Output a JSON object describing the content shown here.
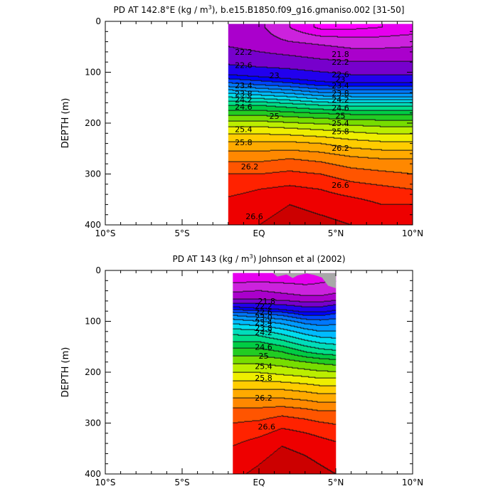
{
  "chart_data": [
    {
      "type": "contour",
      "title": "PD AT 142.8°E (kg / m³), b.e15.B1850.f09_g16.gmaniso.002 [31-50]",
      "title_parts": {
        "pre": "PD AT 142.8°E (kg / m",
        "sup": "3",
        "post": "), b.e15.B1850.f09_g16.gmaniso.002 [31-50]"
      },
      "ylabel": "DEPTH (m)",
      "xlabel": "",
      "xlim": [
        -10,
        10
      ],
      "ylim": [
        400,
        0
      ],
      "x_ticks": [
        {
          "value": -10,
          "label": "10°S"
        },
        {
          "value": -5,
          "label": "5°S"
        },
        {
          "value": 0,
          "label": "EQ"
        },
        {
          "value": 5,
          "label": "5°N"
        },
        {
          "value": 10,
          "label": "10°N"
        }
      ],
      "y_ticks": [
        {
          "value": 0,
          "label": "0"
        },
        {
          "value": 100,
          "label": "100"
        },
        {
          "value": 200,
          "label": "200"
        },
        {
          "value": 300,
          "label": "300"
        },
        {
          "value": 400,
          "label": "400"
        }
      ],
      "data_xlim": [
        -2,
        10
      ],
      "data_ylim": [
        5,
        400
      ],
      "levels": [
        21.0,
        21.4,
        21.8,
        22.2,
        22.6,
        23.0,
        23.2,
        23.4,
        23.6,
        23.8,
        24.0,
        24.2,
        24.4,
        24.6,
        24.8,
        25.0,
        25.2,
        25.4,
        25.6,
        25.8,
        26.0,
        26.2,
        26.4,
        26.6,
        26.8
      ],
      "colors": [
        "#ff00ff",
        "#e600ee",
        "#cc22dd",
        "#aa00cc",
        "#7700cc",
        "#2200ee",
        "#0000ff",
        "#0044ff",
        "#0077ff",
        "#0099ff",
        "#00bbff",
        "#00ddee",
        "#00ddbb",
        "#00dd88",
        "#00cc44",
        "#22cc22",
        "#77dd00",
        "#bbee00",
        "#eeee00",
        "#ffcc00",
        "#ffaa00",
        "#ff8800",
        "#ff5500",
        "#ff2200",
        "#ee0000",
        "#cc0000"
      ],
      "profile_x": [
        -2,
        0,
        2,
        4,
        6,
        8,
        10
      ],
      "profiles": [
        {
          "depth": 12,
          "values": [
            22.0,
            21.9,
            21.4,
            20.9,
            20.9,
            21.0,
            21.1
          ]
        },
        {
          "depth": 40,
          "values": [
            22.1,
            22.0,
            21.8,
            21.7,
            21.6,
            21.6,
            21.7
          ]
        },
        {
          "depth": 60,
          "values": [
            22.3,
            22.2,
            22.1,
            22.0,
            21.9,
            21.9,
            21.9
          ]
        },
        {
          "depth": 85,
          "values": [
            22.6,
            22.5,
            22.45,
            22.35,
            22.3,
            22.3,
            22.3
          ]
        },
        {
          "depth": 105,
          "values": [
            23.0,
            22.9,
            22.8,
            22.7,
            22.6,
            22.6,
            22.6
          ]
        },
        {
          "depth": 125,
          "values": [
            23.5,
            23.4,
            23.3,
            23.15,
            23.1,
            23.1,
            23.1
          ]
        },
        {
          "depth": 145,
          "values": [
            24.1,
            24.0,
            23.9,
            23.75,
            23.7,
            23.7,
            23.7
          ]
        },
        {
          "depth": 165,
          "values": [
            24.6,
            24.6,
            24.5,
            24.4,
            24.35,
            24.35,
            24.35
          ]
        },
        {
          "depth": 185,
          "values": [
            25.0,
            25.0,
            24.95,
            24.9,
            24.85,
            24.85,
            24.85
          ]
        },
        {
          "depth": 210,
          "values": [
            25.45,
            25.45,
            25.4,
            25.35,
            25.3,
            25.25,
            25.25
          ]
        },
        {
          "depth": 240,
          "values": [
            25.85,
            25.85,
            25.85,
            25.8,
            25.7,
            25.65,
            25.65
          ]
        },
        {
          "depth": 270,
          "values": [
            26.15,
            26.15,
            26.2,
            26.15,
            26.05,
            26.0,
            26.0
          ]
        },
        {
          "depth": 300,
          "values": [
            26.4,
            26.4,
            26.45,
            26.4,
            26.3,
            26.25,
            26.2
          ]
        },
        {
          "depth": 330,
          "values": [
            26.55,
            26.6,
            26.65,
            26.6,
            26.5,
            26.45,
            26.4
          ]
        },
        {
          "depth": 360,
          "values": [
            26.65,
            26.7,
            26.8,
            26.75,
            26.7,
            26.6,
            26.6
          ]
        },
        {
          "depth": 400,
          "values": [
            26.75,
            26.8,
            26.9,
            26.85,
            26.8,
            26.75,
            26.7
          ]
        }
      ],
      "contour_labels": [
        {
          "text": "22.2",
          "x": -1.0,
          "y": 60
        },
        {
          "text": "22.6",
          "x": -1.0,
          "y": 86
        },
        {
          "text": "23",
          "x": 1.0,
          "y": 106
        },
        {
          "text": "23.4",
          "x": -1.0,
          "y": 126
        },
        {
          "text": "23.8",
          "x": -1.0,
          "y": 142
        },
        {
          "text": "24.2",
          "x": -1.0,
          "y": 154
        },
        {
          "text": "24.6",
          "x": -1.0,
          "y": 168
        },
        {
          "text": "25",
          "x": 1.0,
          "y": 186
        },
        {
          "text": "25.4",
          "x": -1.0,
          "y": 212
        },
        {
          "text": "25.8",
          "x": -1.0,
          "y": 238
        },
        {
          "text": "26.2",
          "x": -0.6,
          "y": 285
        },
        {
          "text": "26.6",
          "x": -0.3,
          "y": 383
        },
        {
          "text": "21.8",
          "x": 5.3,
          "y": 64
        },
        {
          "text": "22.2",
          "x": 5.3,
          "y": 80
        },
        {
          "text": "22.6",
          "x": 5.3,
          "y": 104
        },
        {
          "text": "23",
          "x": 5.3,
          "y": 114
        },
        {
          "text": "23.4",
          "x": 5.3,
          "y": 126
        },
        {
          "text": "23.8",
          "x": 5.3,
          "y": 141
        },
        {
          "text": "24.2",
          "x": 5.3,
          "y": 154
        },
        {
          "text": "24.6",
          "x": 5.3,
          "y": 170
        },
        {
          "text": "25",
          "x": 5.3,
          "y": 185
        },
        {
          "text": "25.4",
          "x": 5.3,
          "y": 200
        },
        {
          "text": "25.8",
          "x": 5.3,
          "y": 216
        },
        {
          "text": "26.2",
          "x": 5.3,
          "y": 249
        },
        {
          "text": "26.6",
          "x": 5.3,
          "y": 322
        }
      ]
    },
    {
      "type": "contour",
      "title": "PD AT 143 (kg / m³) Johnson et al (2002)",
      "title_parts": {
        "pre": "PD AT 143 (kg / m",
        "sup": "3",
        "post": ") Johnson et al (2002)"
      },
      "ylabel": "DEPTH (m)",
      "xlabel": "",
      "xlim": [
        -10,
        10
      ],
      "ylim": [
        400,
        0
      ],
      "x_ticks": [
        {
          "value": -10,
          "label": "10°S"
        },
        {
          "value": -5,
          "label": "5°S"
        },
        {
          "value": 0,
          "label": "EQ"
        },
        {
          "value": 5,
          "label": "5°N"
        },
        {
          "value": 10,
          "label": "10°N"
        }
      ],
      "y_ticks": [
        {
          "value": 0,
          "label": "0"
        },
        {
          "value": 100,
          "label": "100"
        },
        {
          "value": 200,
          "label": "200"
        },
        {
          "value": 300,
          "label": "300"
        },
        {
          "value": 400,
          "label": "400"
        }
      ],
      "data_xlim": [
        -1.7,
        5
      ],
      "data_ylim": [
        5,
        400
      ],
      "missing_color": "#a8a8a8",
      "levels": [
        21.0,
        21.4,
        21.8,
        22.2,
        22.6,
        23.0,
        23.2,
        23.4,
        23.6,
        23.8,
        24.0,
        24.2,
        24.4,
        24.6,
        24.8,
        25.0,
        25.2,
        25.4,
        25.6,
        25.8,
        26.0,
        26.2,
        26.4,
        26.6,
        26.8
      ],
      "colors": [
        "#ff00ff",
        "#e600ee",
        "#cc22dd",
        "#aa00cc",
        "#7700cc",
        "#2200ee",
        "#0000ff",
        "#0044ff",
        "#0077ff",
        "#0099ff",
        "#00bbff",
        "#00ddee",
        "#00ddbb",
        "#00dd88",
        "#00cc44",
        "#22cc22",
        "#77dd00",
        "#bbee00",
        "#eeee00",
        "#ffcc00",
        "#ffaa00",
        "#ff8800",
        "#ff5500",
        "#ff2200",
        "#ee0000",
        "#cc0000"
      ],
      "profile_x": [
        -1.7,
        0,
        1.5,
        3,
        4,
        5
      ],
      "profiles": [
        {
          "depth": 15,
          "values": [
            21.2,
            21.2,
            21.2,
            21.2,
            21.3,
            21.3
          ]
        },
        {
          "depth": 35,
          "values": [
            21.6,
            21.7,
            21.6,
            21.5,
            21.5,
            21.6
          ]
        },
        {
          "depth": 55,
          "values": [
            22.1,
            22.1,
            22.0,
            21.9,
            21.9,
            22.0
          ]
        },
        {
          "depth": 72,
          "values": [
            23.0,
            22.9,
            22.8,
            22.6,
            22.6,
            22.8
          ]
        },
        {
          "depth": 85,
          "values": [
            23.5,
            23.4,
            23.3,
            23.1,
            23.1,
            23.2
          ]
        },
        {
          "depth": 100,
          "values": [
            23.9,
            23.8,
            23.7,
            23.5,
            23.45,
            23.5
          ]
        },
        {
          "depth": 120,
          "values": [
            24.3,
            24.25,
            24.1,
            23.9,
            23.8,
            23.8
          ]
        },
        {
          "depth": 140,
          "values": [
            24.6,
            24.6,
            24.45,
            24.25,
            24.15,
            24.1
          ]
        },
        {
          "depth": 160,
          "values": [
            24.9,
            24.9,
            24.8,
            24.6,
            24.5,
            24.45
          ]
        },
        {
          "depth": 180,
          "values": [
            25.15,
            25.15,
            25.1,
            25.0,
            24.95,
            24.9
          ]
        },
        {
          "depth": 205,
          "values": [
            25.45,
            25.45,
            25.4,
            25.35,
            25.3,
            25.3
          ]
        },
        {
          "depth": 230,
          "values": [
            25.75,
            25.75,
            25.75,
            25.7,
            25.65,
            25.65
          ]
        },
        {
          "depth": 255,
          "values": [
            26.05,
            26.05,
            26.05,
            26.0,
            25.95,
            25.95
          ]
        },
        {
          "depth": 280,
          "values": [
            26.3,
            26.3,
            26.35,
            26.3,
            26.25,
            26.25
          ]
        },
        {
          "depth": 310,
          "values": [
            26.45,
            26.5,
            26.6,
            26.55,
            26.5,
            26.45
          ]
        },
        {
          "depth": 345,
          "values": [
            26.6,
            26.7,
            26.8,
            26.75,
            26.7,
            26.65
          ]
        },
        {
          "depth": 400,
          "values": [
            26.75,
            26.85,
            26.95,
            26.9,
            26.85,
            26.8
          ]
        }
      ],
      "contour_labels": [
        {
          "text": "21.8",
          "x": 0.5,
          "y": 60
        },
        {
          "text": "22.2",
          "x": 0.3,
          "y": 70
        },
        {
          "text": "22.6",
          "x": 0.3,
          "y": 82
        },
        {
          "text": "23.0",
          "x": 0.3,
          "y": 92
        },
        {
          "text": "23.4",
          "x": 0.3,
          "y": 102
        },
        {
          "text": "23.8",
          "x": 0.3,
          "y": 113
        },
        {
          "text": "24.2",
          "x": 0.3,
          "y": 122
        },
        {
          "text": "24.6",
          "x": 0.3,
          "y": 150
        },
        {
          "text": "25",
          "x": 0.3,
          "y": 168
        },
        {
          "text": "25.4",
          "x": 0.3,
          "y": 188
        },
        {
          "text": "25.8",
          "x": 0.3,
          "y": 211
        },
        {
          "text": "26.2",
          "x": 0.3,
          "y": 250
        },
        {
          "text": "26.6",
          "x": 0.5,
          "y": 307
        }
      ]
    }
  ]
}
